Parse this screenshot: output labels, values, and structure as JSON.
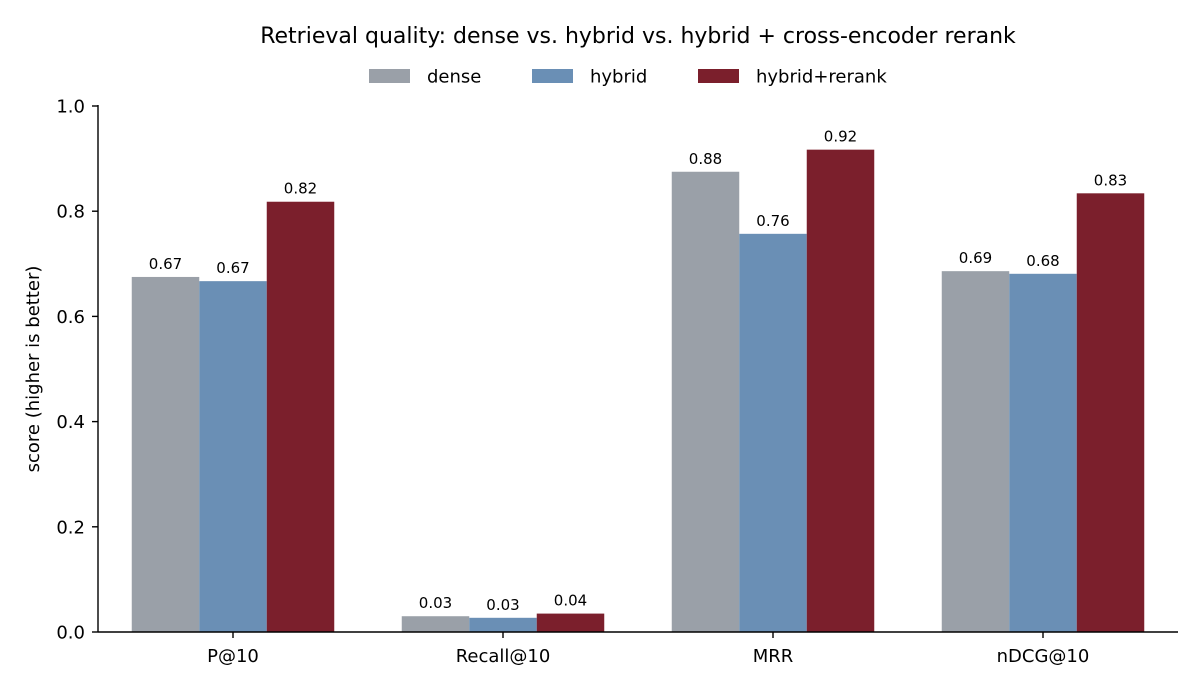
{
  "chart_data": {
    "type": "bar",
    "title": "Retrieval quality: dense vs. hybrid vs. hybrid + cross-encoder rerank",
    "xlabel": "",
    "ylabel": "score (higher is better)",
    "ylim": [
      0,
      1.0
    ],
    "yticks": [
      "0.0",
      "0.2",
      "0.4",
      "0.6",
      "0.8",
      "1.0"
    ],
    "yticks_values": [
      0,
      0.2,
      0.4,
      0.6,
      0.8,
      1.0
    ],
    "categories": [
      "P@10",
      "Recall@10",
      "MRR",
      "nDCG@10"
    ],
    "grid": false,
    "legend_position": "top-center",
    "series": [
      {
        "name": "dense",
        "color": "#9aa0a8",
        "values": [
          0.675,
          0.03,
          0.875,
          0.686
        ],
        "labels": [
          "0.67",
          "0.03",
          "0.88",
          "0.69"
        ]
      },
      {
        "name": "hybrid",
        "color": "#6a8fb5",
        "values": [
          0.667,
          0.027,
          0.757,
          0.681
        ],
        "labels": [
          "0.67",
          "0.03",
          "0.76",
          "0.68"
        ]
      },
      {
        "name": "hybrid+rerank",
        "color": "#7b1f2c",
        "values": [
          0.818,
          0.035,
          0.917,
          0.834
        ],
        "labels": [
          "0.82",
          "0.04",
          "0.92",
          "0.83"
        ]
      }
    ]
  }
}
